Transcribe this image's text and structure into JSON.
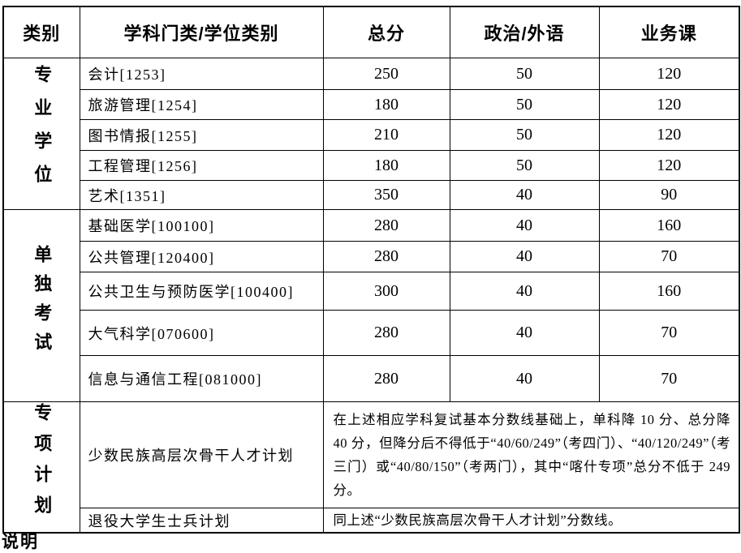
{
  "colors": {
    "background": "#ffffff",
    "text": "#000000",
    "border": "#000000"
  },
  "table": {
    "header": {
      "category": "类别",
      "discipline": "学科门类/学位类别",
      "total": "总分",
      "politics_foreign": "政治/外语",
      "course": "业务课"
    },
    "groups": [
      {
        "label": "专业学位",
        "rows": [
          {
            "subject": "会计[1253]",
            "total": "250",
            "politics": "50",
            "course": "120"
          },
          {
            "subject": "旅游管理[1254]",
            "total": "180",
            "politics": "50",
            "course": "120"
          },
          {
            "subject": "图书情报[1255]",
            "total": "210",
            "politics": "50",
            "course": "120"
          },
          {
            "subject": "工程管理[1256]",
            "total": "180",
            "politics": "50",
            "course": "120"
          },
          {
            "subject": "艺术[1351]",
            "total": "350",
            "politics": "40",
            "course": "90"
          }
        ]
      },
      {
        "label": "单独考试",
        "rows": [
          {
            "subject": "基础医学[100100]",
            "total": "280",
            "politics": "40",
            "course": "160"
          },
          {
            "subject": "公共管理[120400]",
            "total": "280",
            "politics": "40",
            "course": "70"
          },
          {
            "subject": "公共卫生与预防医学[100400]",
            "total": "300",
            "politics": "40",
            "course": "160"
          },
          {
            "subject": "大气科学[070600]",
            "total": "280",
            "politics": "40",
            "course": "70"
          },
          {
            "subject": "信息与通信工程[081000]",
            "total": "280",
            "politics": "40",
            "course": "70"
          }
        ]
      },
      {
        "label": "专项计划",
        "rows": [
          {
            "subject": "少数民族高层次骨干人才计划",
            "note": "在上述相应学科复试基本分数线基础上，单科降 10 分、总分降 40 分，但降分后不得低于“40/60/249”（考四门）、“40/120/249”（考三门）或“40/80/150”（考两门），其中“喀什专项”总分不低于 249 分。"
          },
          {
            "subject": "退役大学生士兵计划",
            "note": "同上述“少数民族高层次骨干人才计划”分数线。"
          }
        ]
      }
    ]
  },
  "footer": {
    "partial_text": "说明"
  }
}
